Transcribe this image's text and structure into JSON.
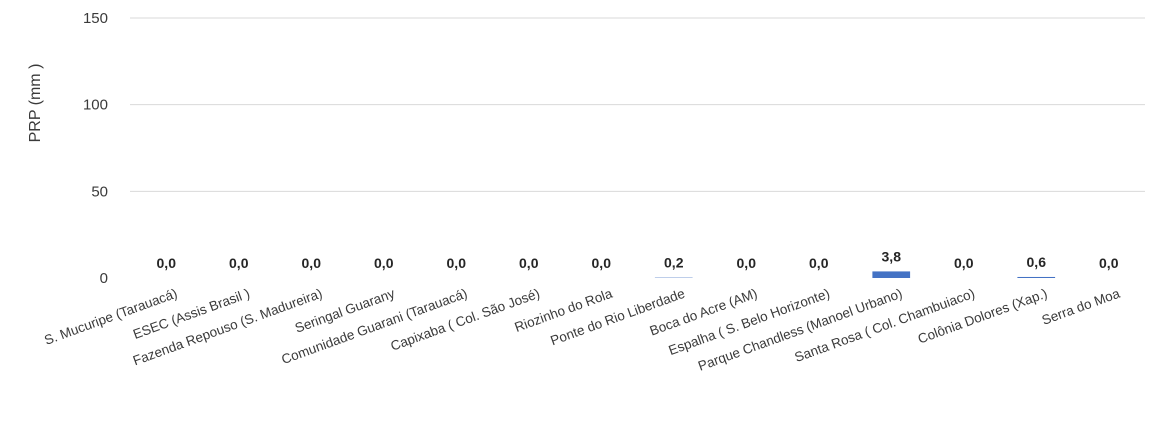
{
  "chart_data": {
    "type": "bar",
    "title": "",
    "xlabel": "",
    "ylabel": "PRP (mm )",
    "ylim": [
      0,
      150
    ],
    "yticks": [
      0,
      50,
      100,
      150
    ],
    "grid": true,
    "legend": "none",
    "bar_color": "#4472c4",
    "decimal_separator": ",",
    "categories": [
      "S. Mucuripe (Tarauacá)",
      "ESEC (Assis Brasil )",
      "Fazenda Repouso (S. Madureira)",
      "Seringal Guarany",
      "Comunidade Guarani (Tarauacá)",
      "Capixaba ( Col. São José)",
      "Riozinho do Rola",
      "Ponte do Rio Liberdade",
      "Boca do Acre (AM)",
      "Espalha ( S. Belo Horizonte)",
      "Parque Chandless (Manoel Urbano)",
      "Santa Rosa ( Col. Chambuiaco)",
      "Colônia Dolores (Xap.)",
      "Serra do Moa"
    ],
    "values": [
      0.0,
      0.0,
      0.0,
      0.0,
      0.0,
      0.0,
      0.0,
      0.2,
      0.0,
      0.0,
      3.8,
      0.0,
      0.6,
      0.0
    ],
    "data_labels": [
      "0,0",
      "0,0",
      "0,0",
      "0,0",
      "0,0",
      "0,0",
      "0,0",
      "0,2",
      "0,0",
      "0,0",
      "3,8",
      "0,0",
      "0,6",
      "0,0"
    ]
  }
}
